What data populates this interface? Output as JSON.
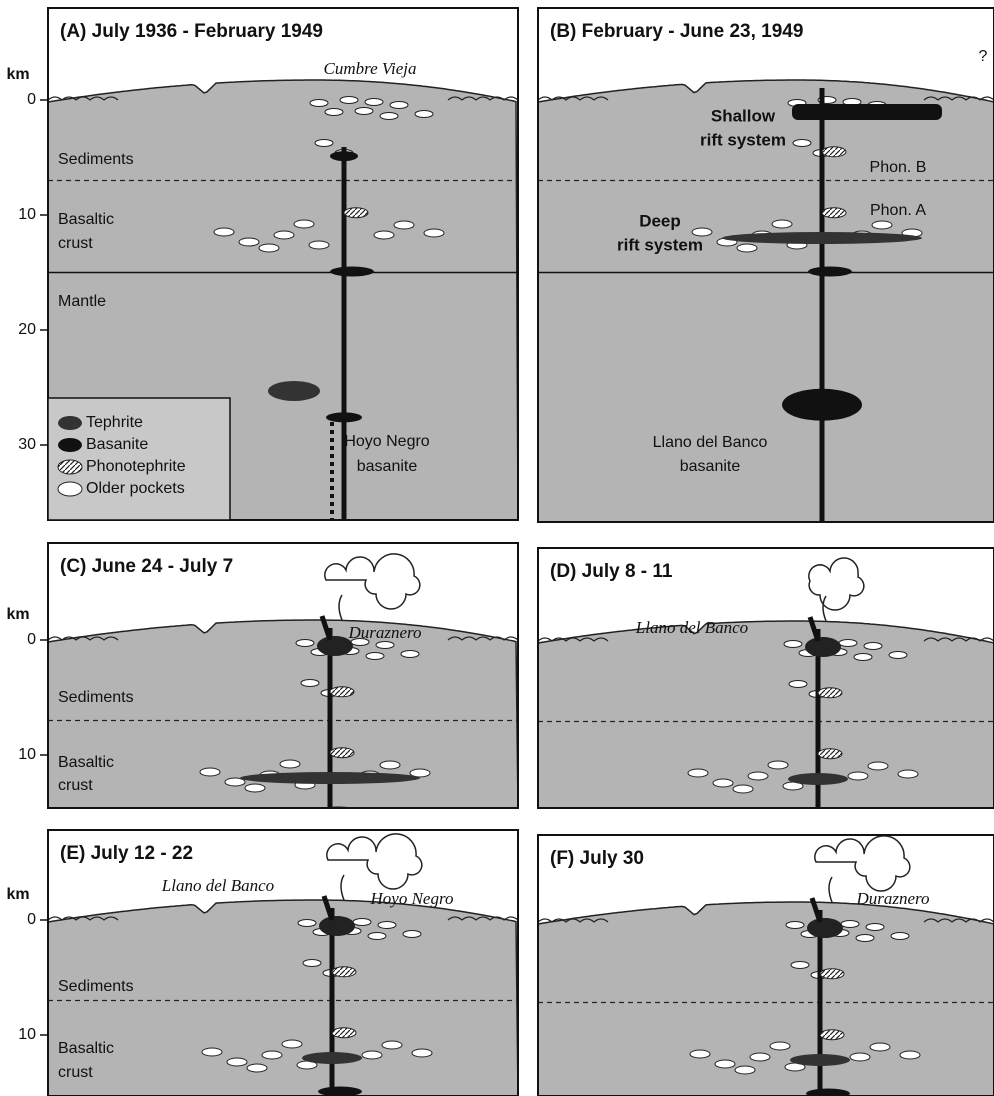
{
  "figure": {
    "panels": [
      {
        "title": "(A) July 1936 - February 1949",
        "axis": {
          "unit": "km",
          "ticks": [
            "0",
            "10",
            "20",
            "30"
          ]
        },
        "labels": [
          "Cumbre Vieja",
          "Sediments",
          "Basaltic",
          "crust",
          "Mantle",
          "Hoyo Negro",
          "basanite"
        ],
        "legend": [
          "Tephrite",
          "Basanite",
          "Phonotephrite",
          "Older pockets"
        ]
      },
      {
        "title": "(B) February - June 23, 1949",
        "labels": [
          "?",
          "Shallow",
          "rift system",
          "Phon. B",
          "Phon. A",
          "Deep",
          "rift system",
          "Llano del Banco",
          "basanite"
        ]
      },
      {
        "title": "(C) June 24 - July 7",
        "axis": {
          "unit": "km",
          "ticks": [
            "0",
            "10"
          ]
        },
        "labels": [
          "Duraznero",
          "Sediments",
          "Basaltic",
          "crust"
        ]
      },
      {
        "title": "(D) July 8 - 11",
        "labels": [
          "Llano del Banco"
        ]
      },
      {
        "title": "(E) July 12 - 22",
        "axis": {
          "unit": "km",
          "ticks": [
            "0",
            "10"
          ]
        },
        "labels": [
          "Llano del Banco",
          "Hoyo Negro",
          "Sediments",
          "Basaltic",
          "crust"
        ]
      },
      {
        "title": "(F) July 30",
        "labels": [
          "Duraznero"
        ]
      }
    ]
  }
}
